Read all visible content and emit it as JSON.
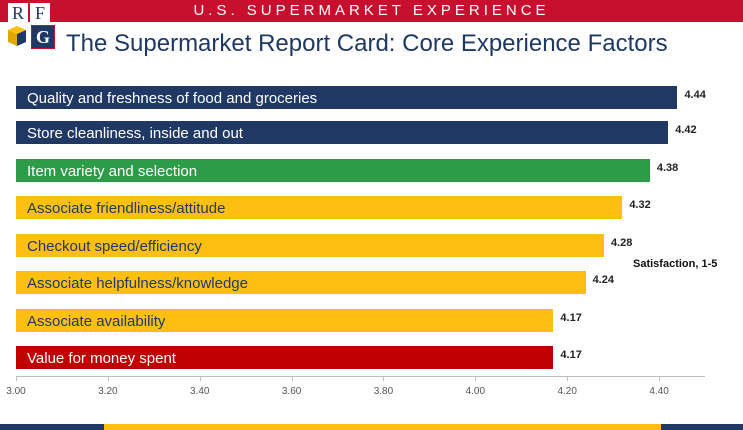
{
  "header": {
    "banner_title": "U.S. SUPERMARKET EXPERIENCE",
    "logo_letters": [
      "R",
      "F",
      "G"
    ]
  },
  "colors": {
    "banner_red": "#c8102e",
    "navy": "#1f3864",
    "green": "#2e9b48",
    "gold": "#fdc010",
    "red": "#c00000"
  },
  "chart_data": {
    "type": "bar",
    "orientation": "horizontal",
    "title": "The Supermarket Report Card: Core Experience Factors",
    "value_axis_label": "Satisfaction, 1-5",
    "xlim": [
      3.0,
      4.5
    ],
    "xticks": [
      "3.00",
      "3.20",
      "3.40",
      "3.60",
      "3.80",
      "4.00",
      "4.20",
      "4.40"
    ],
    "categories": [
      "Quality and freshness of food and groceries",
      "Store cleanliness, inside and out",
      "Item variety and selection",
      "Associate friendliness/attitude",
      "Checkout speed/efficiency",
      "Associate helpfulness/knowledge",
      "Associate availability",
      "Value for money spent"
    ],
    "values": [
      4.44,
      4.42,
      4.38,
      4.32,
      4.28,
      4.24,
      4.17,
      4.17
    ],
    "value_labels": [
      "4.44",
      "4.42",
      "4.38",
      "4.32",
      "4.28",
      "4.24",
      "4.17",
      "4.17"
    ],
    "bar_colors": [
      "#1f3864",
      "#1f3864",
      "#2e9b48",
      "#fdc010",
      "#fdc010",
      "#fdc010",
      "#fdc010",
      "#c00000"
    ],
    "label_colors": [
      "#ffffff",
      "#ffffff",
      "#ffffff",
      "#1f3864",
      "#1f3864",
      "#1f3864",
      "#1f3864",
      "#ffffff"
    ]
  }
}
